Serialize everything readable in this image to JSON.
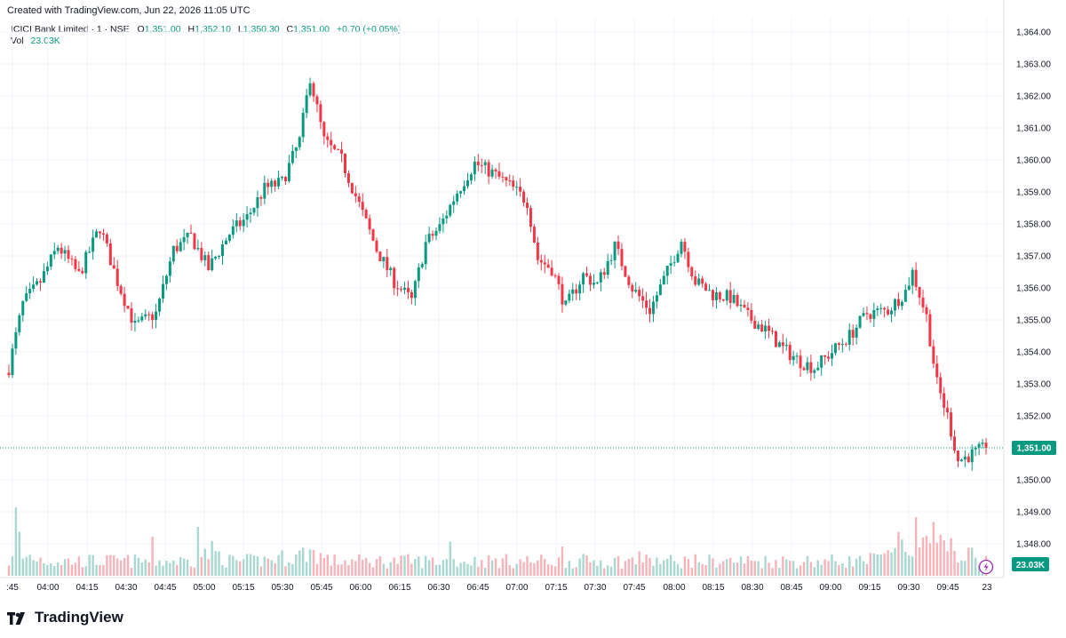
{
  "header": {
    "credit": "Created with TradingView.com, Jun 22, 2026 11:05 UTC"
  },
  "legend": {
    "symbol": "ICICI Bank Limited · 1 · NSE",
    "open_label": "O",
    "open": "1,351.00",
    "high_label": "H",
    "high": "1,352.10",
    "low_label": "L",
    "low": "1,350.30",
    "close_label": "C",
    "close": "1,351.00",
    "change": "+0.70 (+0.05%)",
    "volume_label": "Vol",
    "volume": "23.03K"
  },
  "footer": {
    "brand": "TradingView"
  },
  "colors": {
    "up": "#089981",
    "down": "#f23645",
    "up_volume": "#a8d8d1",
    "down_volume": "#f6b3ba",
    "grid": "#f0f3fa",
    "axis_text": "#131722",
    "last_price_line": "#089981"
  },
  "icons": {
    "brand": "tradingview-logo-icon",
    "flash": "lightning-icon"
  },
  "chart_data": {
    "type": "candlestick",
    "title": "",
    "xlabel": "",
    "ylabel": "",
    "y_axis_labels": [
      "1,364.00",
      "1,363.00",
      "1,362.00",
      "1,361.00",
      "1,360.00",
      "1,359.00",
      "1,358.00",
      "1,357.00",
      "1,356.00",
      "1,355.00",
      "1,354.00",
      "1,353.00",
      "1,352.00",
      "1,350.00",
      "1,349.00",
      "1,348.00"
    ],
    "ylim": [
      1347.9,
      1364.2
    ],
    "x_axis_labels": [
      ":45",
      "04:00",
      "04:15",
      "04:30",
      "04:45",
      "05:00",
      "05:15",
      "05:30",
      "05:45",
      "06:00",
      "06:15",
      "06:30",
      "06:45",
      "07:00",
      "07:15",
      "07:30",
      "07:45",
      "08:00",
      "08:15",
      "08:30",
      "08:45",
      "09:00",
      "09:15",
      "09:30",
      "09:45",
      "23"
    ],
    "last_price": 1351.0,
    "last_price_label": "1,351.00",
    "last_volume_label": "23.03K",
    "grid": true,
    "price_path": [
      [
        0,
        1353.5
      ],
      [
        4,
        1355.5
      ],
      [
        9,
        1356.2
      ],
      [
        14,
        1357.3
      ],
      [
        20,
        1356.4
      ],
      [
        26,
        1357.9
      ],
      [
        31,
        1356.2
      ],
      [
        36,
        1354.8
      ],
      [
        42,
        1355.2
      ],
      [
        47,
        1357.2
      ],
      [
        52,
        1357.6
      ],
      [
        57,
        1356.6
      ],
      [
        63,
        1357.7
      ],
      [
        68,
        1358.2
      ],
      [
        73,
        1359.1
      ],
      [
        78,
        1359.3
      ],
      [
        83,
        1360.6
      ],
      [
        86,
        1362.6
      ],
      [
        90,
        1360.6
      ],
      [
        95,
        1360.0
      ],
      [
        100,
        1358.6
      ],
      [
        105,
        1357.2
      ],
      [
        110,
        1356.2
      ],
      [
        115,
        1355.6
      ],
      [
        119,
        1357.4
      ],
      [
        123,
        1357.9
      ],
      [
        128,
        1359.0
      ],
      [
        133,
        1359.9
      ],
      [
        138,
        1359.6
      ],
      [
        143,
        1359.2
      ],
      [
        148,
        1358.7
      ],
      [
        151,
        1356.9
      ],
      [
        155,
        1356.6
      ],
      [
        159,
        1355.4
      ],
      [
        164,
        1356.4
      ],
      [
        168,
        1356.1
      ],
      [
        173,
        1357.3
      ],
      [
        178,
        1356.0
      ],
      [
        183,
        1355.3
      ],
      [
        188,
        1356.5
      ],
      [
        192,
        1357.5
      ],
      [
        196,
        1356.2
      ],
      [
        201,
        1355.8
      ],
      [
        206,
        1355.7
      ],
      [
        211,
        1355.1
      ],
      [
        216,
        1354.7
      ],
      [
        221,
        1354.1
      ],
      [
        226,
        1353.7
      ],
      [
        230,
        1353.5
      ],
      [
        235,
        1354.0
      ],
      [
        240,
        1354.5
      ],
      [
        245,
        1355.2
      ],
      [
        251,
        1355.3
      ],
      [
        256,
        1355.9
      ],
      [
        258,
        1356.5
      ],
      [
        262,
        1355.1
      ],
      [
        265,
        1353.0
      ],
      [
        268,
        1352.0
      ],
      [
        271,
        1350.6
      ],
      [
        275,
        1350.8
      ],
      [
        279,
        1351.0
      ]
    ],
    "volume_path": [
      [
        0,
        3
      ],
      [
        6,
        4
      ],
      [
        12,
        3
      ],
      [
        20,
        3
      ],
      [
        28,
        3
      ],
      [
        36,
        3
      ],
      [
        44,
        3
      ],
      [
        52,
        3
      ],
      [
        58,
        5
      ],
      [
        63,
        3
      ],
      [
        70,
        3
      ],
      [
        82,
        4
      ],
      [
        86,
        5
      ],
      [
        92,
        3
      ],
      [
        100,
        3
      ],
      [
        110,
        3
      ],
      [
        120,
        3
      ],
      [
        130,
        3
      ],
      [
        140,
        3
      ],
      [
        150,
        3
      ],
      [
        160,
        3
      ],
      [
        170,
        3
      ],
      [
        180,
        3
      ],
      [
        188,
        3
      ],
      [
        196,
        3
      ],
      [
        204,
        3
      ],
      [
        212,
        3
      ],
      [
        220,
        3
      ],
      [
        228,
        3
      ],
      [
        236,
        3
      ],
      [
        244,
        3
      ],
      [
        252,
        4
      ],
      [
        258,
        6
      ],
      [
        264,
        7
      ],
      [
        270,
        5
      ],
      [
        279,
        3
      ]
    ],
    "volume_spikes": [
      [
        2,
        14
      ],
      [
        3,
        9
      ],
      [
        41,
        8
      ],
      [
        54,
        10
      ],
      [
        60,
        5
      ],
      [
        126,
        7
      ],
      [
        158,
        6
      ],
      [
        180,
        5
      ],
      [
        190,
        3
      ],
      [
        254,
        9
      ],
      [
        259,
        12
      ],
      [
        264,
        11
      ],
      [
        268,
        5
      ]
    ]
  }
}
